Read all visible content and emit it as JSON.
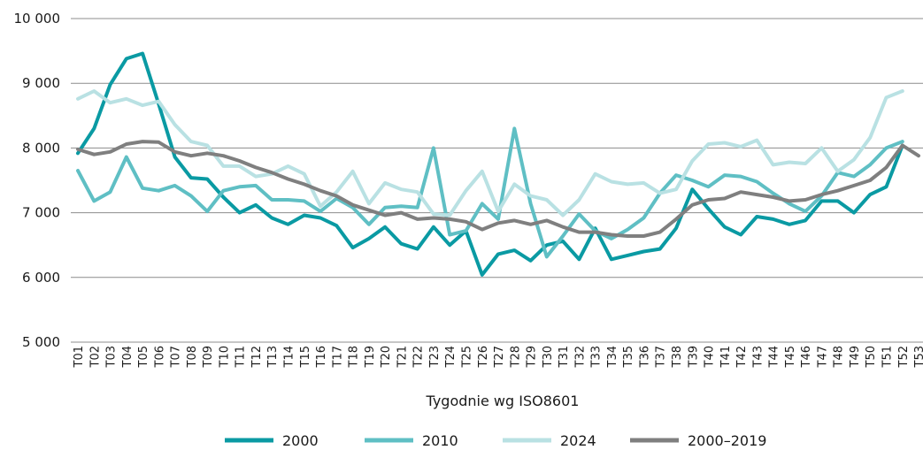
{
  "chart_data": {
    "type": "line",
    "title": "",
    "xlabel": "Tygodnie wg ISO8601",
    "ylabel": "",
    "ylim": [
      5000,
      10000
    ],
    "yticks": [
      5000,
      6000,
      7000,
      8000,
      9000,
      10000
    ],
    "ytick_labels": [
      "5 000",
      "6 000",
      "7 000",
      "8 000",
      "9 000",
      "10 000"
    ],
    "grid": "horizontal",
    "legend_position": "bottom",
    "categories": [
      "T01",
      "T02",
      "T03",
      "T04",
      "T05",
      "T06",
      "T07",
      "T08",
      "T09",
      "T10",
      "T11",
      "T12",
      "T13",
      "T14",
      "T15",
      "T16",
      "T17",
      "T18",
      "T19",
      "T20",
      "T21",
      "T22",
      "T23",
      "T24",
      "T25",
      "T26",
      "T27",
      "T28",
      "T29",
      "T30",
      "T31",
      "T32",
      "T33",
      "T34",
      "T35",
      "T36",
      "T37",
      "T38",
      "T39",
      "T40",
      "T41",
      "T42",
      "T43",
      "T44",
      "T45",
      "T46",
      "T47",
      "T48",
      "T49",
      "T50",
      "T51",
      "T52",
      "T53"
    ],
    "series": [
      {
        "name": "2000",
        "color": "#0a9aa3",
        "values": [
          7920,
          8300,
          8980,
          9380,
          9460,
          8680,
          7860,
          7540,
          7520,
          7240,
          7000,
          7120,
          6920,
          6820,
          6960,
          6920,
          6800,
          6460,
          6600,
          6780,
          6520,
          6440,
          6780,
          6500,
          6720,
          6040,
          6360,
          6420,
          6260,
          6500,
          6560,
          6280,
          6760,
          6280,
          6340,
          6400,
          6440,
          6760,
          7360,
          7060,
          6780,
          6660,
          6940,
          6900,
          6820,
          6880,
          7180,
          7180,
          7000,
          7280,
          7400,
          8040,
          null
        ]
      },
      {
        "name": "2010",
        "color": "#5fbfc4",
        "values": [
          7650,
          7180,
          7320,
          7860,
          7380,
          7340,
          7420,
          7260,
          7020,
          7340,
          7400,
          7420,
          7200,
          7200,
          7180,
          7020,
          7220,
          7080,
          6820,
          7080,
          7100,
          7080,
          8000,
          6660,
          6720,
          7140,
          6900,
          8300,
          7140,
          6320,
          6640,
          6980,
          6720,
          6600,
          6740,
          6920,
          7300,
          7580,
          7500,
          7400,
          7580,
          7560,
          7480,
          7300,
          7140,
          7020,
          7260,
          7620,
          7560,
          7740,
          8000,
          8100,
          null
        ]
      },
      {
        "name": "2024",
        "color": "#b9e1e3",
        "values": [
          8760,
          8880,
          8700,
          8760,
          8660,
          8720,
          8360,
          8100,
          8040,
          7720,
          7720,
          7560,
          7600,
          7720,
          7600,
          7100,
          7320,
          7640,
          7140,
          7460,
          7360,
          7320,
          6980,
          6960,
          7340,
          7640,
          7020,
          7440,
          7260,
          7200,
          6960,
          7200,
          7600,
          7480,
          7440,
          7460,
          7300,
          7360,
          7800,
          8060,
          8080,
          8020,
          8120,
          7740,
          7780,
          7760,
          8000,
          7640,
          7820,
          8160,
          8780,
          8880,
          null
        ]
      },
      {
        "name": "2000–2019",
        "color": "#7f7f7f",
        "values": [
          7980,
          7900,
          7940,
          8060,
          8100,
          8090,
          7940,
          7880,
          7920,
          7880,
          7800,
          7700,
          7620,
          7520,
          7440,
          7340,
          7260,
          7120,
          7040,
          6960,
          7000,
          6900,
          6920,
          6900,
          6860,
          6740,
          6840,
          6880,
          6820,
          6880,
          6780,
          6700,
          6700,
          6660,
          6640,
          6640,
          6700,
          6900,
          7120,
          7200,
          7220,
          7320,
          7280,
          7240,
          7180,
          7200,
          7280,
          7340,
          7420,
          7500,
          7700,
          8040,
          7880
        ]
      }
    ]
  }
}
